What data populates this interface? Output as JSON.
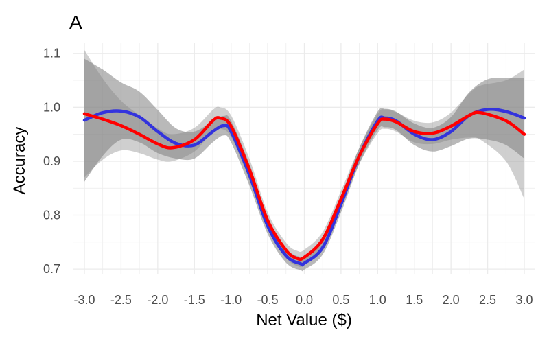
{
  "chart_data": {
    "type": "line",
    "panel_label": "A",
    "title": "",
    "xlabel": "Net Value ($)",
    "ylabel": "Accuracy",
    "xlim": [
      -3.15,
      3.15
    ],
    "ylim": [
      0.69,
      1.12
    ],
    "x_ticks": [
      "-3.0",
      "-2.5",
      "-2.0",
      "-1.5",
      "-1.0",
      "-0.5",
      "0.0",
      "0.5",
      "1.0",
      "1.5",
      "2.0",
      "2.5",
      "3.0"
    ],
    "y_ticks": [
      "0.7",
      "0.8",
      "0.9",
      "1.0",
      "1.1"
    ],
    "grid": true,
    "legend": "none",
    "colors": {
      "blue_series": "#3333dd",
      "red_series": "#ff0000",
      "ribbon": "#808080",
      "grid": "#ebebeb"
    },
    "series": [
      {
        "color": "#3333dd",
        "x": [
          -3.0,
          -2.75,
          -2.5,
          -2.25,
          -2.0,
          -1.75,
          -1.5,
          -1.25,
          -1.1,
          -1.0,
          -0.75,
          -0.5,
          -0.25,
          -0.05,
          0.0,
          0.25,
          0.5,
          0.75,
          1.0,
          1.1,
          1.25,
          1.5,
          1.75,
          2.0,
          2.25,
          2.5,
          2.75,
          3.0
        ],
        "y": [
          0.976,
          0.99,
          0.993,
          0.982,
          0.955,
          0.933,
          0.93,
          0.955,
          0.966,
          0.955,
          0.875,
          0.78,
          0.725,
          0.71,
          0.711,
          0.74,
          0.82,
          0.91,
          0.975,
          0.98,
          0.975,
          0.95,
          0.94,
          0.955,
          0.985,
          0.996,
          0.992,
          0.98
        ],
        "ci_low": [
          0.862,
          0.91,
          0.94,
          0.935,
          0.915,
          0.905,
          0.905,
          0.935,
          0.948,
          0.935,
          0.855,
          0.765,
          0.712,
          0.698,
          0.699,
          0.727,
          0.805,
          0.895,
          0.958,
          0.963,
          0.958,
          0.93,
          0.918,
          0.928,
          0.942,
          0.94,
          0.93,
          0.905
        ],
        "ci_high": [
          1.09,
          1.07,
          1.046,
          1.029,
          0.995,
          0.961,
          0.955,
          0.975,
          0.984,
          0.975,
          0.895,
          0.795,
          0.738,
          0.722,
          0.723,
          0.753,
          0.835,
          0.925,
          0.992,
          0.997,
          0.992,
          0.97,
          0.962,
          0.982,
          1.028,
          1.052,
          1.054,
          1.055
        ]
      },
      {
        "color": "#ff0000",
        "x": [
          -3.0,
          -2.75,
          -2.5,
          -2.25,
          -2.0,
          -1.8,
          -1.5,
          -1.25,
          -1.15,
          -1.0,
          -0.75,
          -0.5,
          -0.25,
          -0.1,
          0.0,
          0.25,
          0.5,
          0.75,
          1.0,
          1.1,
          1.25,
          1.5,
          1.75,
          2.0,
          2.25,
          2.4,
          2.75,
          3.0
        ],
        "y": [
          0.988,
          0.978,
          0.966,
          0.95,
          0.932,
          0.925,
          0.94,
          0.975,
          0.98,
          0.965,
          0.885,
          0.79,
          0.735,
          0.72,
          0.722,
          0.755,
          0.83,
          0.91,
          0.97,
          0.978,
          0.973,
          0.955,
          0.952,
          0.965,
          0.985,
          0.99,
          0.975,
          0.95
        ],
        "ci_low": [
          0.87,
          0.903,
          0.92,
          0.915,
          0.903,
          0.9,
          0.918,
          0.955,
          0.96,
          0.945,
          0.865,
          0.775,
          0.721,
          0.706,
          0.708,
          0.741,
          0.815,
          0.895,
          0.952,
          0.96,
          0.955,
          0.935,
          0.932,
          0.94,
          0.944,
          0.94,
          0.9,
          0.83
        ],
        "ci_high": [
          1.106,
          1.053,
          1.012,
          0.985,
          0.961,
          0.95,
          0.962,
          0.995,
          1.0,
          0.985,
          0.905,
          0.805,
          0.749,
          0.734,
          0.736,
          0.769,
          0.845,
          0.925,
          0.988,
          0.996,
          0.991,
          0.975,
          0.972,
          0.99,
          1.026,
          1.04,
          1.05,
          1.07
        ]
      }
    ]
  }
}
